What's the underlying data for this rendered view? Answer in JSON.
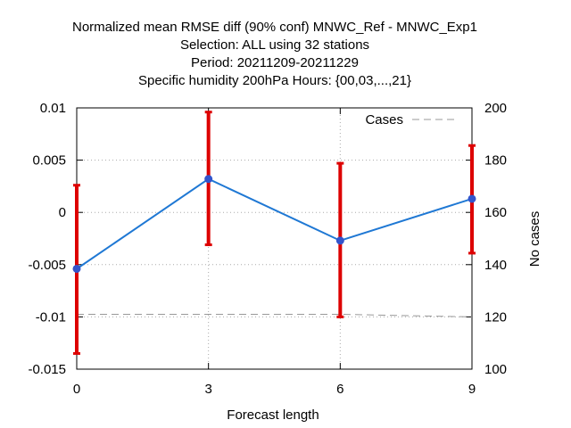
{
  "chart_data": {
    "type": "line",
    "title_lines": [
      "Normalized mean RMSE diff (90% conf) MNWC_Ref - MNWC_Exp1",
      "Selection: ALL using    32 stations",
      "Period: 20211209-20211229",
      "Specific humidity 200hPa   Hours: {00,03,...,21}"
    ],
    "xlabel": "Forecast length",
    "ylabel": "",
    "y2label": "No cases",
    "xlim": [
      0,
      9
    ],
    "ylim": [
      -0.015,
      0.01
    ],
    "y2lim": [
      100,
      200
    ],
    "x_ticks": [
      0,
      3,
      6,
      9
    ],
    "y_ticks": [
      -0.015,
      -0.01,
      -0.005,
      0,
      0.005,
      0.01
    ],
    "y_tick_labels": [
      "-0.015",
      "-0.01",
      "-0.005",
      "0",
      "0.005",
      "0.01"
    ],
    "y2_ticks": [
      100,
      120,
      140,
      160,
      180,
      200
    ],
    "grid": true,
    "legend_position": "top-right",
    "series": [
      {
        "name": "",
        "color": "#1f78d4",
        "x": [
          0,
          3,
          6,
          9
        ],
        "y": [
          -0.0054,
          0.0032,
          -0.0027,
          0.0013
        ],
        "err_low": [
          -0.0135,
          -0.0031,
          -0.01,
          -0.0039
        ],
        "err_high": [
          0.0026,
          0.0096,
          0.0047,
          0.0064
        ],
        "err_color": "#dd0000"
      },
      {
        "name": "Cases",
        "axis": "y2",
        "style": "dashed",
        "color": "#999999",
        "x": [
          0,
          3,
          6,
          9
        ],
        "y": [
          121,
          121,
          121,
          120
        ]
      }
    ]
  }
}
